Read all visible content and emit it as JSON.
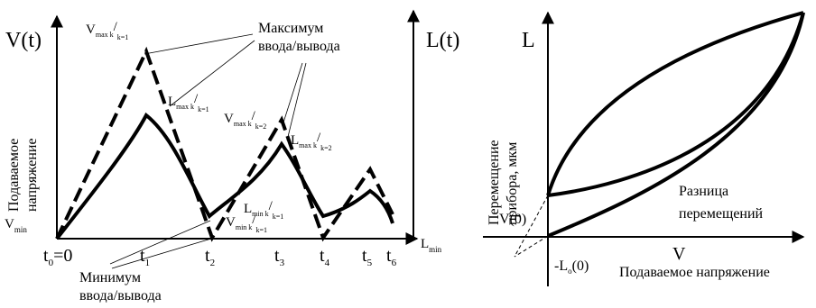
{
  "left_diagram": {
    "y_axis_left_label": "V(t)",
    "y_axis_right_label": "L(t)",
    "y_axis_caption_line1": "Подаваемое",
    "y_axis_caption_line2": "напряжение",
    "vmin_label": {
      "main": "V",
      "sub": "min"
    },
    "lmin_label": {
      "main": "L",
      "sub": "min"
    },
    "annotation_max": {
      "line1": "Максимум",
      "line2": "ввода/вывода"
    },
    "annotation_min": {
      "line1": "Минимум",
      "line2": "ввода/вывода"
    },
    "time_ticks": [
      {
        "main": "t",
        "sub": "0",
        "suffix": "=0"
      },
      {
        "main": "t",
        "sub": "1",
        "suffix": ""
      },
      {
        "main": "t",
        "sub": "2",
        "suffix": ""
      },
      {
        "main": "t",
        "sub": "3",
        "suffix": ""
      },
      {
        "main": "t",
        "sub": "4",
        "suffix": ""
      },
      {
        "main": "t",
        "sub": "5",
        "suffix": ""
      },
      {
        "main": "t",
        "sub": "6",
        "suffix": ""
      }
    ],
    "point_labels": {
      "vmax1": {
        "main": "V",
        "sub": "max k",
        "tail": "/",
        "sub2": "k=1"
      },
      "lmax1": {
        "main": "L",
        "sub": "max k",
        "tail": "/",
        "sub2": "k=1"
      },
      "vmax2": {
        "main": "V",
        "sub": "max k",
        "tail": "/",
        "sub2": "k=2"
      },
      "lmax2": {
        "main": "L",
        "sub": "max k",
        "tail": "/",
        "sub2": "k=2"
      },
      "lmin1": {
        "main": "L",
        "sub": "min k",
        "tail": "/",
        "sub2": "k=1"
      },
      "vmin1": {
        "main": "V",
        "sub": "min k",
        "tail": "/",
        "sub2": "k=1"
      }
    }
  },
  "right_diagram": {
    "y_axis_label": "L",
    "x_axis_label": "V",
    "y_caption_line1": "Перемещение",
    "y_caption_line2": "прибора, мкм",
    "x_caption": "Подаваемое напряжение",
    "difference_line1": "Разница",
    "difference_line2": "перемещений",
    "v0_label": "V(0)",
    "l0_label": {
      "prefix": "-L",
      "sub": "o",
      "suffix": "(0)"
    }
  }
}
